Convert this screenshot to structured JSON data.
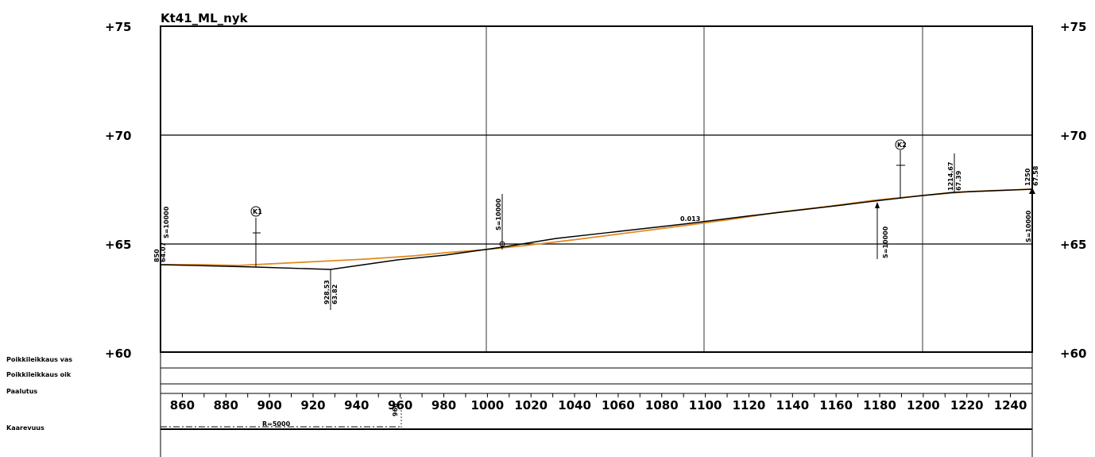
{
  "title": "Kt41_ML_nyk",
  "y_labels": [
    "+75",
    "+70",
    "+65",
    "+60"
  ],
  "y_values": [
    75,
    70,
    65,
    60
  ],
  "x_labels": [
    "860",
    "880",
    "900",
    "920",
    "940",
    "960",
    "980",
    "1000",
    "1020",
    "1040",
    "1060",
    "1080",
    "1100",
    "1120",
    "1140",
    "1160",
    "1180",
    "1200",
    "1220",
    "1240"
  ],
  "row_labels": [
    "Poikkileikkaus vas",
    "Poikkileikkaus oik",
    "Paalutus",
    "Kaarevuus"
  ],
  "curvature_label": "R=5000",
  "curvature_end_label": "960",
  "gradient_label": "0.013",
  "markers": {
    "k1": "K1",
    "k2": "K2",
    "start_station": "850",
    "start_height": "64.07",
    "start_s": "S=10000",
    "low_station": "928.53",
    "low_height": "63.82",
    "mid_s": "S=10000",
    "right_s": "S=10000",
    "high_station": "1214.67",
    "high_height": "67.39",
    "end_station": "1250",
    "end_height": "67.58",
    "end_s": "S=10000"
  },
  "colors": {
    "design_line": "#000000",
    "ground_line": "#e08a1e",
    "grid": "#000000"
  },
  "chart_data": {
    "type": "line",
    "title": "Kt41_ML_nyk",
    "xlim": [
      850,
      1250
    ],
    "ylim": [
      60,
      75
    ],
    "series": [
      {
        "x": [
          850,
          895,
          928.53,
          960,
          1006,
          1020,
          1100,
          1180,
          1214.67,
          1250
        ],
        "y": [
          64.07,
          64.0,
          63.82,
          64.3,
          64.9,
          65.2,
          66.3,
          67.1,
          67.39,
          67.58
        ]
      },
      {
        "x": [
          850,
          900,
          960,
          1000,
          1040,
          1100,
          1160,
          1200,
          1250
        ],
        "y": [
          64.1,
          64.05,
          64.35,
          64.7,
          65.1,
          65.95,
          66.8,
          67.25,
          67.58
        ]
      }
    ]
  }
}
